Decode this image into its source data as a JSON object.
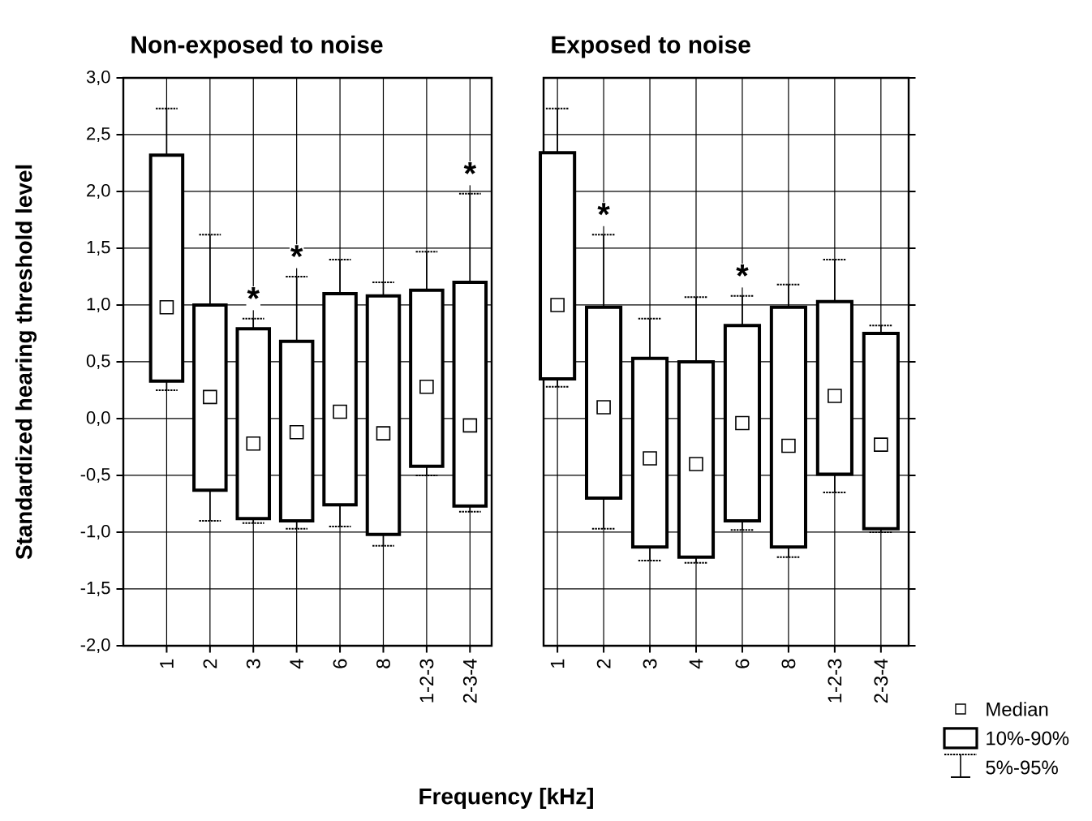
{
  "chart_data": [
    {
      "type": "box",
      "title": "Non-exposed to noise",
      "ylabel": "Standardized hearing threshold level",
      "xlabel": "Frequency [kHz]",
      "categories": [
        "1",
        "2",
        "3",
        "4",
        "6",
        "8",
        "1-2-3",
        "2-3-4"
      ],
      "boxes": [
        {
          "low": 0.25,
          "q1": 0.33,
          "median": 0.98,
          "q3": 2.32,
          "high": 2.73
        },
        {
          "low": -0.9,
          "q1": -0.63,
          "median": 0.19,
          "q3": 1.0,
          "high": 1.62
        },
        {
          "low": -0.92,
          "q1": -0.88,
          "median": -0.22,
          "q3": 0.79,
          "high": 0.88
        },
        {
          "low": -0.97,
          "q1": -0.9,
          "median": -0.12,
          "q3": 0.68,
          "high": 1.25
        },
        {
          "low": -0.95,
          "q1": -0.76,
          "median": 0.06,
          "q3": 1.1,
          "high": 1.4
        },
        {
          "low": -1.12,
          "q1": -1.02,
          "median": -0.13,
          "q3": 1.08,
          "high": 1.2
        },
        {
          "low": -0.5,
          "q1": -0.42,
          "median": 0.28,
          "q3": 1.13,
          "high": 1.47
        },
        {
          "low": -0.82,
          "q1": -0.77,
          "median": -0.06,
          "q3": 1.2,
          "high": 1.98
        }
      ],
      "ylim": [
        -2,
        3
      ],
      "yticks": [
        {
          "value": -2,
          "label": "-2,0"
        },
        {
          "value": -1.5,
          "label": "-1,5"
        },
        {
          "value": -1,
          "label": "-1,0"
        },
        {
          "value": -0.5,
          "label": "-0,5"
        },
        {
          "value": 0,
          "label": "0,0"
        },
        {
          "value": 0.5,
          "label": "0,5"
        },
        {
          "value": 1,
          "label": "1,0"
        },
        {
          "value": 1.5,
          "label": "1,5"
        },
        {
          "value": 2,
          "label": "2,0"
        },
        {
          "value": 2.5,
          "label": "2,5"
        },
        {
          "value": 3,
          "label": "3,0"
        }
      ],
      "grid": true,
      "annotations": [
        {
          "text": "*",
          "x": "3",
          "y": 0.88
        },
        {
          "text": "*",
          "x": "4",
          "y": 1.25
        },
        {
          "text": "*",
          "x": "2-3-4",
          "y": 1.98
        }
      ]
    },
    {
      "type": "box",
      "title": "Exposed to noise",
      "categories": [
        "1",
        "2",
        "3",
        "4",
        "6",
        "8",
        "1-2-3",
        "2-3-4"
      ],
      "boxes": [
        {
          "low": 0.28,
          "q1": 0.35,
          "median": 1.0,
          "q3": 2.34,
          "high": 2.73
        },
        {
          "low": -0.97,
          "q1": -0.7,
          "median": 0.1,
          "q3": 0.98,
          "high": 1.62
        },
        {
          "low": -1.25,
          "q1": -1.13,
          "median": -0.35,
          "q3": 0.53,
          "high": 0.88
        },
        {
          "low": -1.27,
          "q1": -1.22,
          "median": -0.4,
          "q3": 0.5,
          "high": 1.07
        },
        {
          "low": -0.98,
          "q1": -0.9,
          "median": -0.04,
          "q3": 0.82,
          "high": 1.08
        },
        {
          "low": -1.22,
          "q1": -1.13,
          "median": -0.24,
          "q3": 0.98,
          "high": 1.18
        },
        {
          "low": -0.65,
          "q1": -0.49,
          "median": 0.2,
          "q3": 1.03,
          "high": 1.4
        },
        {
          "low": -1.0,
          "q1": -0.97,
          "median": -0.23,
          "q3": 0.75,
          "high": 0.82
        }
      ],
      "ylim": [
        -2,
        3
      ],
      "yticks": [
        -2,
        -1.5,
        -1,
        -0.5,
        0,
        0.5,
        1,
        1.5,
        2,
        2.5,
        3
      ],
      "tick_labels": "x",
      "grid": true,
      "annotations": [
        {
          "text": "*",
          "x": "2",
          "y": 1.62
        },
        {
          "text": "*",
          "x": "6",
          "y": 1.08
        },
        "Median",
        "10%-90%",
        "5%-95%"
      ]
    }
  ]
}
